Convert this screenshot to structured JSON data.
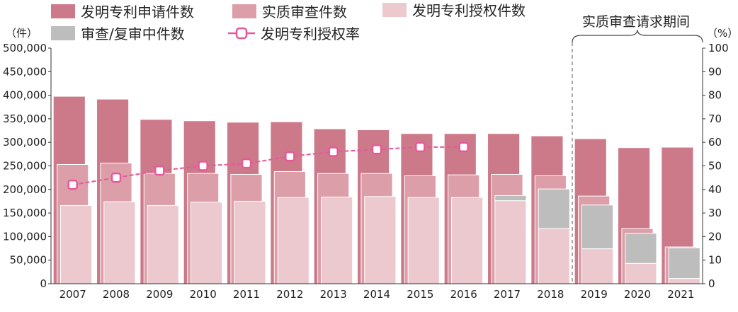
{
  "chart_data": {
    "type": "bar",
    "categories": [
      "2007",
      "2008",
      "2009",
      "2010",
      "2011",
      "2012",
      "2013",
      "2014",
      "2015",
      "2016",
      "2017",
      "2018",
      "2019",
      "2020",
      "2021"
    ],
    "series": [
      {
        "name": "发明专利申请件数",
        "kind": "bar",
        "axis": "left",
        "color": "#cc7a8a",
        "values": [
          397000,
          391000,
          348000,
          345000,
          342000,
          343000,
          328000,
          326000,
          318000,
          318000,
          318000,
          313000,
          307000,
          288000,
          289000
        ]
      },
      {
        "name": "实质审查件数",
        "kind": "bar",
        "axis": "left",
        "color": "#dc9ea8",
        "values": [
          253000,
          256000,
          234000,
          234000,
          232000,
          238000,
          234000,
          234000,
          229000,
          231000,
          232000,
          229000,
          186000,
          117000,
          78000
        ]
      },
      {
        "name": "审查/复审中件数",
        "kind": "bar",
        "axis": "left",
        "color": "#bdbdbd",
        "values": [
          0,
          0,
          0,
          0,
          0,
          0,
          0,
          0,
          0,
          0,
          11000,
          84000,
          93000,
          64000,
          65000
        ]
      },
      {
        "name": "发明专利授权件数",
        "kind": "bar",
        "axis": "left",
        "color": "#ecc9cf",
        "values": [
          166000,
          174000,
          166000,
          173000,
          175000,
          183000,
          184000,
          185000,
          183000,
          183000,
          176000,
          117000,
          74000,
          43000,
          11000
        ]
      },
      {
        "name": "发明专利授权率",
        "kind": "line",
        "axis": "right",
        "color": "#e8579a",
        "values": [
          42,
          45,
          48,
          50,
          51,
          54,
          56,
          57,
          58,
          58,
          null,
          null,
          null,
          null,
          null
        ]
      }
    ],
    "ylabel_left": "（件）",
    "ylabel_right": "（%）",
    "ylim_left": [
      0,
      500000
    ],
    "ylim_right": [
      0,
      100
    ],
    "yticks_left": [
      "0",
      "50,000",
      "100,000",
      "150,000",
      "200,000",
      "250,000",
      "300,000",
      "350,000",
      "400,000",
      "450,000",
      "500,000"
    ],
    "yticks_right": [
      "0",
      "10",
      "20",
      "30",
      "40",
      "50",
      "60",
      "70",
      "80",
      "90",
      "100"
    ],
    "annotation": "实质审查请求期间",
    "annotation_start_category": "2019",
    "grid": false,
    "legend_position": "top-left"
  }
}
